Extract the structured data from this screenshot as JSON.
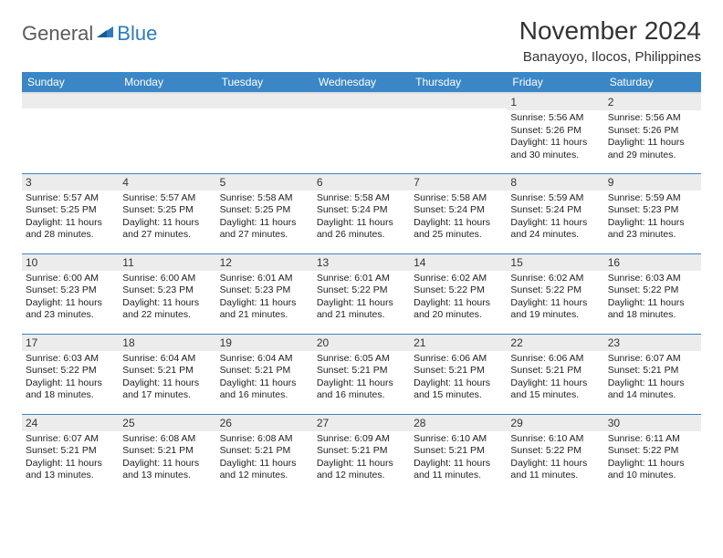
{
  "logo": {
    "text1": "General",
    "text2": "Blue"
  },
  "title": "November 2024",
  "subtitle": "Banayoyo, Ilocos, Philippines",
  "header_bg": "#3b86c6",
  "header_fg": "#ffffff",
  "daynum_bg": "#ececec",
  "border_color": "#3b86c6",
  "weekdays": [
    "Sunday",
    "Monday",
    "Tuesday",
    "Wednesday",
    "Thursday",
    "Friday",
    "Saturday"
  ],
  "weeks": [
    [
      null,
      null,
      null,
      null,
      null,
      {
        "day": "1",
        "sunrise": "Sunrise: 5:56 AM",
        "sunset": "Sunset: 5:26 PM",
        "daylight": "Daylight: 11 hours and 30 minutes."
      },
      {
        "day": "2",
        "sunrise": "Sunrise: 5:56 AM",
        "sunset": "Sunset: 5:26 PM",
        "daylight": "Daylight: 11 hours and 29 minutes."
      }
    ],
    [
      {
        "day": "3",
        "sunrise": "Sunrise: 5:57 AM",
        "sunset": "Sunset: 5:25 PM",
        "daylight": "Daylight: 11 hours and 28 minutes."
      },
      {
        "day": "4",
        "sunrise": "Sunrise: 5:57 AM",
        "sunset": "Sunset: 5:25 PM",
        "daylight": "Daylight: 11 hours and 27 minutes."
      },
      {
        "day": "5",
        "sunrise": "Sunrise: 5:58 AM",
        "sunset": "Sunset: 5:25 PM",
        "daylight": "Daylight: 11 hours and 27 minutes."
      },
      {
        "day": "6",
        "sunrise": "Sunrise: 5:58 AM",
        "sunset": "Sunset: 5:24 PM",
        "daylight": "Daylight: 11 hours and 26 minutes."
      },
      {
        "day": "7",
        "sunrise": "Sunrise: 5:58 AM",
        "sunset": "Sunset: 5:24 PM",
        "daylight": "Daylight: 11 hours and 25 minutes."
      },
      {
        "day": "8",
        "sunrise": "Sunrise: 5:59 AM",
        "sunset": "Sunset: 5:24 PM",
        "daylight": "Daylight: 11 hours and 24 minutes."
      },
      {
        "day": "9",
        "sunrise": "Sunrise: 5:59 AM",
        "sunset": "Sunset: 5:23 PM",
        "daylight": "Daylight: 11 hours and 23 minutes."
      }
    ],
    [
      {
        "day": "10",
        "sunrise": "Sunrise: 6:00 AM",
        "sunset": "Sunset: 5:23 PM",
        "daylight": "Daylight: 11 hours and 23 minutes."
      },
      {
        "day": "11",
        "sunrise": "Sunrise: 6:00 AM",
        "sunset": "Sunset: 5:23 PM",
        "daylight": "Daylight: 11 hours and 22 minutes."
      },
      {
        "day": "12",
        "sunrise": "Sunrise: 6:01 AM",
        "sunset": "Sunset: 5:23 PM",
        "daylight": "Daylight: 11 hours and 21 minutes."
      },
      {
        "day": "13",
        "sunrise": "Sunrise: 6:01 AM",
        "sunset": "Sunset: 5:22 PM",
        "daylight": "Daylight: 11 hours and 21 minutes."
      },
      {
        "day": "14",
        "sunrise": "Sunrise: 6:02 AM",
        "sunset": "Sunset: 5:22 PM",
        "daylight": "Daylight: 11 hours and 20 minutes."
      },
      {
        "day": "15",
        "sunrise": "Sunrise: 6:02 AM",
        "sunset": "Sunset: 5:22 PM",
        "daylight": "Daylight: 11 hours and 19 minutes."
      },
      {
        "day": "16",
        "sunrise": "Sunrise: 6:03 AM",
        "sunset": "Sunset: 5:22 PM",
        "daylight": "Daylight: 11 hours and 18 minutes."
      }
    ],
    [
      {
        "day": "17",
        "sunrise": "Sunrise: 6:03 AM",
        "sunset": "Sunset: 5:22 PM",
        "daylight": "Daylight: 11 hours and 18 minutes."
      },
      {
        "day": "18",
        "sunrise": "Sunrise: 6:04 AM",
        "sunset": "Sunset: 5:21 PM",
        "daylight": "Daylight: 11 hours and 17 minutes."
      },
      {
        "day": "19",
        "sunrise": "Sunrise: 6:04 AM",
        "sunset": "Sunset: 5:21 PM",
        "daylight": "Daylight: 11 hours and 16 minutes."
      },
      {
        "day": "20",
        "sunrise": "Sunrise: 6:05 AM",
        "sunset": "Sunset: 5:21 PM",
        "daylight": "Daylight: 11 hours and 16 minutes."
      },
      {
        "day": "21",
        "sunrise": "Sunrise: 6:06 AM",
        "sunset": "Sunset: 5:21 PM",
        "daylight": "Daylight: 11 hours and 15 minutes."
      },
      {
        "day": "22",
        "sunrise": "Sunrise: 6:06 AM",
        "sunset": "Sunset: 5:21 PM",
        "daylight": "Daylight: 11 hours and 15 minutes."
      },
      {
        "day": "23",
        "sunrise": "Sunrise: 6:07 AM",
        "sunset": "Sunset: 5:21 PM",
        "daylight": "Daylight: 11 hours and 14 minutes."
      }
    ],
    [
      {
        "day": "24",
        "sunrise": "Sunrise: 6:07 AM",
        "sunset": "Sunset: 5:21 PM",
        "daylight": "Daylight: 11 hours and 13 minutes."
      },
      {
        "day": "25",
        "sunrise": "Sunrise: 6:08 AM",
        "sunset": "Sunset: 5:21 PM",
        "daylight": "Daylight: 11 hours and 13 minutes."
      },
      {
        "day": "26",
        "sunrise": "Sunrise: 6:08 AM",
        "sunset": "Sunset: 5:21 PM",
        "daylight": "Daylight: 11 hours and 12 minutes."
      },
      {
        "day": "27",
        "sunrise": "Sunrise: 6:09 AM",
        "sunset": "Sunset: 5:21 PM",
        "daylight": "Daylight: 11 hours and 12 minutes."
      },
      {
        "day": "28",
        "sunrise": "Sunrise: 6:10 AM",
        "sunset": "Sunset: 5:21 PM",
        "daylight": "Daylight: 11 hours and 11 minutes."
      },
      {
        "day": "29",
        "sunrise": "Sunrise: 6:10 AM",
        "sunset": "Sunset: 5:22 PM",
        "daylight": "Daylight: 11 hours and 11 minutes."
      },
      {
        "day": "30",
        "sunrise": "Sunrise: 6:11 AM",
        "sunset": "Sunset: 5:22 PM",
        "daylight": "Daylight: 11 hours and 10 minutes."
      }
    ]
  ]
}
